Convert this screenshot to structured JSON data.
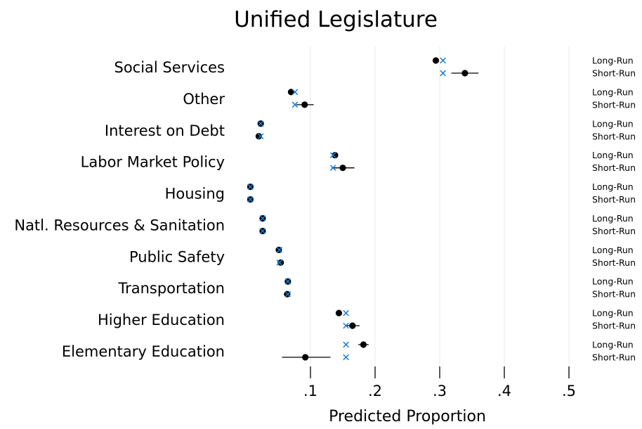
{
  "chart_data": {
    "type": "scatter",
    "title": "Unified Legislature",
    "xlabel": "Predicted Proportion",
    "ylabel": "",
    "xlim": [
      0,
      0.5
    ],
    "x_ticks": [
      {
        "value": 0.1,
        "label": ".1"
      },
      {
        "value": 0.2,
        "label": ".2"
      },
      {
        "value": 0.3,
        "label": ".3"
      },
      {
        "value": 0.4,
        "label": ".4"
      },
      {
        "value": 0.5,
        "label": ".5"
      }
    ],
    "grid": true,
    "legend": "none",
    "rows": [
      "Long-Run",
      "Short-Run"
    ],
    "colors": {
      "dot": "#000000",
      "cross": "#1a7fd6",
      "grid": "#e8e8e8"
    },
    "categories": [
      {
        "label": "Social Services",
        "long_run": {
          "dot": 0.294,
          "cross": 0.305,
          "ci": [
            0.29,
            0.298
          ]
        },
        "short_run": {
          "dot": 0.339,
          "cross": 0.305,
          "ci": [
            0.318,
            0.36
          ]
        }
      },
      {
        "label": "Other",
        "long_run": {
          "dot": 0.07,
          "cross": 0.076,
          "ci": [
            0.066,
            0.074
          ]
        },
        "short_run": {
          "dot": 0.091,
          "cross": 0.076,
          "ci": [
            0.078,
            0.105
          ]
        }
      },
      {
        "label": "Interest on Debt",
        "long_run": {
          "dot": 0.023,
          "cross": 0.023,
          "ci": [
            0.021,
            0.025
          ]
        },
        "short_run": {
          "dot": 0.02,
          "cross": 0.023,
          "ci": [
            0.017,
            0.024
          ]
        }
      },
      {
        "label": "Labor Market Policy",
        "long_run": {
          "dot": 0.138,
          "cross": 0.135,
          "ci": [
            0.135,
            0.141
          ]
        },
        "short_run": {
          "dot": 0.15,
          "cross": 0.135,
          "ci": [
            0.133,
            0.168
          ]
        }
      },
      {
        "label": "Housing",
        "long_run": {
          "dot": 0.007,
          "cross": 0.007,
          "ci": [
            0.005,
            0.009
          ]
        },
        "short_run": {
          "dot": 0.007,
          "cross": 0.007,
          "ci": [
            0.005,
            0.009
          ]
        }
      },
      {
        "label": "Natl. Resources & Sanitation",
        "long_run": {
          "dot": 0.026,
          "cross": 0.026,
          "ci": [
            0.024,
            0.028
          ]
        },
        "short_run": {
          "dot": 0.026,
          "cross": 0.026,
          "ci": [
            0.024,
            0.028
          ]
        }
      },
      {
        "label": "Public Safety",
        "long_run": {
          "dot": 0.051,
          "cross": 0.052,
          "ci": [
            0.049,
            0.054
          ]
        },
        "short_run": {
          "dot": 0.054,
          "cross": 0.052,
          "ci": [
            0.05,
            0.058
          ]
        }
      },
      {
        "label": "Transportation",
        "long_run": {
          "dot": 0.065,
          "cross": 0.065,
          "ci": [
            0.063,
            0.067
          ]
        },
        "short_run": {
          "dot": 0.064,
          "cross": 0.065,
          "ci": [
            0.059,
            0.069
          ]
        }
      },
      {
        "label": "Higher Education",
        "long_run": {
          "dot": 0.144,
          "cross": 0.155,
          "ci": [
            0.14,
            0.148
          ]
        },
        "short_run": {
          "dot": 0.165,
          "cross": 0.155,
          "ci": [
            0.155,
            0.176
          ]
        }
      },
      {
        "label": "Elementary Education",
        "long_run": {
          "dot": 0.182,
          "cross": 0.155,
          "ci": [
            0.174,
            0.19
          ]
        },
        "short_run": {
          "dot": 0.092,
          "cross": 0.155,
          "ci": [
            0.056,
            0.131
          ]
        }
      }
    ]
  }
}
